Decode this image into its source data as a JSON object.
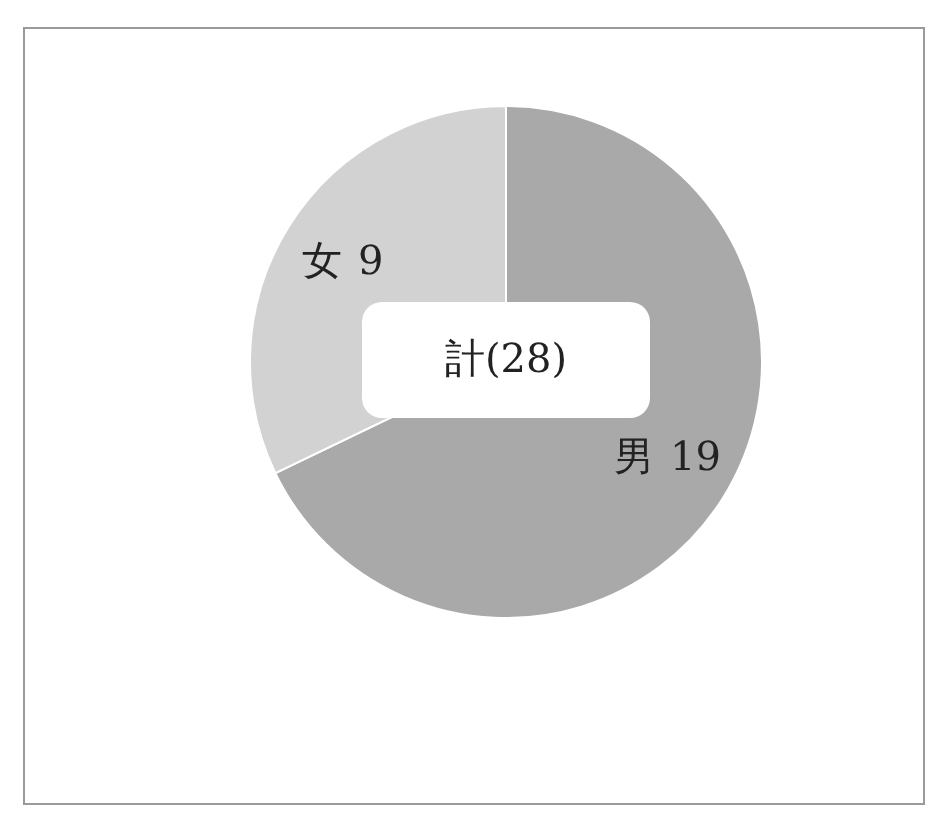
{
  "chart_data": {
    "type": "pie",
    "categories": [
      "男",
      "女"
    ],
    "values": [
      19,
      9
    ],
    "colors": [
      "#a9a9a9",
      "#d2d2d2"
    ],
    "data_labels": true,
    "annotations": [
      "計(28)"
    ]
  }
}
